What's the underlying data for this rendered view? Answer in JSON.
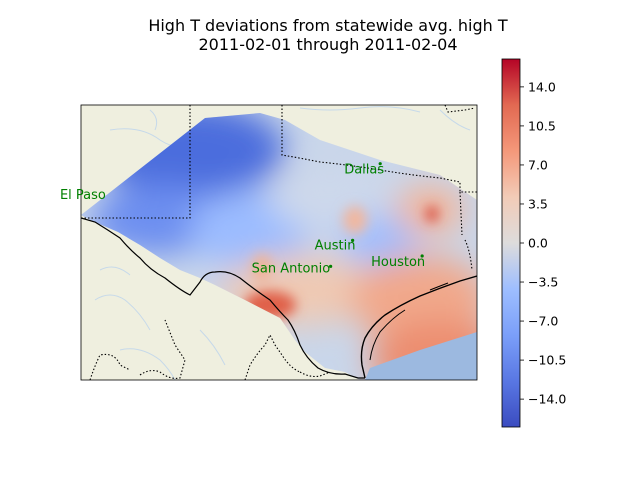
{
  "chart_data": {
    "type": "heatmap",
    "title": "High T deviations from statewide avg. high T",
    "subtitle": "2011-02-01 through 2011-02-04",
    "colorbar": {
      "colormap": "coolwarm",
      "vmin": -16.5,
      "vmax": 16.5,
      "ticks": [
        14.0,
        10.5,
        7.0,
        3.5,
        0.0,
        -3.5,
        -7.0,
        -10.5,
        -14.0
      ],
      "tick_labels": [
        "14.0",
        "10.5",
        "7.0",
        "3.5",
        "0.0",
        "−3.5",
        "−7.0",
        "−10.5",
        "−14.0"
      ]
    },
    "cities": [
      {
        "name": "Dallas",
        "lon": -96.8,
        "lat": 32.78
      },
      {
        "name": "El Paso",
        "lon": -106.49,
        "lat": 31.76
      },
      {
        "name": "Austin",
        "lon": -97.74,
        "lat": 30.27
      },
      {
        "name": "Houston",
        "lon": -95.37,
        "lat": 29.76
      },
      {
        "name": "San Antonio",
        "lon": -98.49,
        "lat": 29.42
      }
    ],
    "map_extent": {
      "lon": [
        -107,
        -93.5
      ],
      "lat": [
        25.7,
        34.7
      ]
    },
    "field_summary": {
      "northwest_panhandle": -12,
      "west_texas": -7,
      "north_central": -2,
      "central": 1,
      "south_texas": 6,
      "gulf_coast": 9,
      "hotspots": [
        {
          "lon": -98.4,
          "lat": 28.9,
          "value": 12
        },
        {
          "lon": -94.6,
          "lat": 32.3,
          "value": 13
        }
      ]
    },
    "colors": {
      "land": "#efefdf",
      "water": "#9cb9e0",
      "city": "#008000"
    }
  }
}
